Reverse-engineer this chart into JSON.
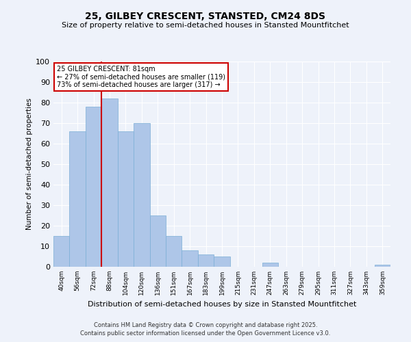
{
  "title": "25, GILBEY CRESCENT, STANSTED, CM24 8DS",
  "subtitle": "Size of property relative to semi-detached houses in Stansted Mountfitchet",
  "xlabel": "Distribution of semi-detached houses by size in Stansted Mountfitchet",
  "ylabel": "Number of semi-detached properties",
  "categories": [
    "40sqm",
    "56sqm",
    "72sqm",
    "88sqm",
    "104sqm",
    "120sqm",
    "136sqm",
    "151sqm",
    "167sqm",
    "183sqm",
    "199sqm",
    "215sqm",
    "231sqm",
    "247sqm",
    "263sqm",
    "279sqm",
    "295sqm",
    "311sqm",
    "327sqm",
    "343sqm",
    "359sqm"
  ],
  "values": [
    15,
    66,
    78,
    82,
    66,
    70,
    25,
    15,
    8,
    6,
    5,
    0,
    0,
    2,
    0,
    0,
    0,
    0,
    0,
    0,
    1
  ],
  "bar_color": "#aec6e8",
  "bar_edge_color": "#7aaed6",
  "vline_color": "#cc0000",
  "vline_x": 2.5,
  "annotation_text": "25 GILBEY CRESCENT: 81sqm\n← 27% of semi-detached houses are smaller (119)\n73% of semi-detached houses are larger (317) →",
  "annotation_box_color": "#cc0000",
  "background_color": "#eef2fa",
  "grid_color": "#ffffff",
  "ylim": [
    0,
    100
  ],
  "yticks": [
    0,
    10,
    20,
    30,
    40,
    50,
    60,
    70,
    80,
    90,
    100
  ],
  "footer_line1": "Contains HM Land Registry data © Crown copyright and database right 2025.",
  "footer_line2": "Contains public sector information licensed under the Open Government Licence v3.0."
}
